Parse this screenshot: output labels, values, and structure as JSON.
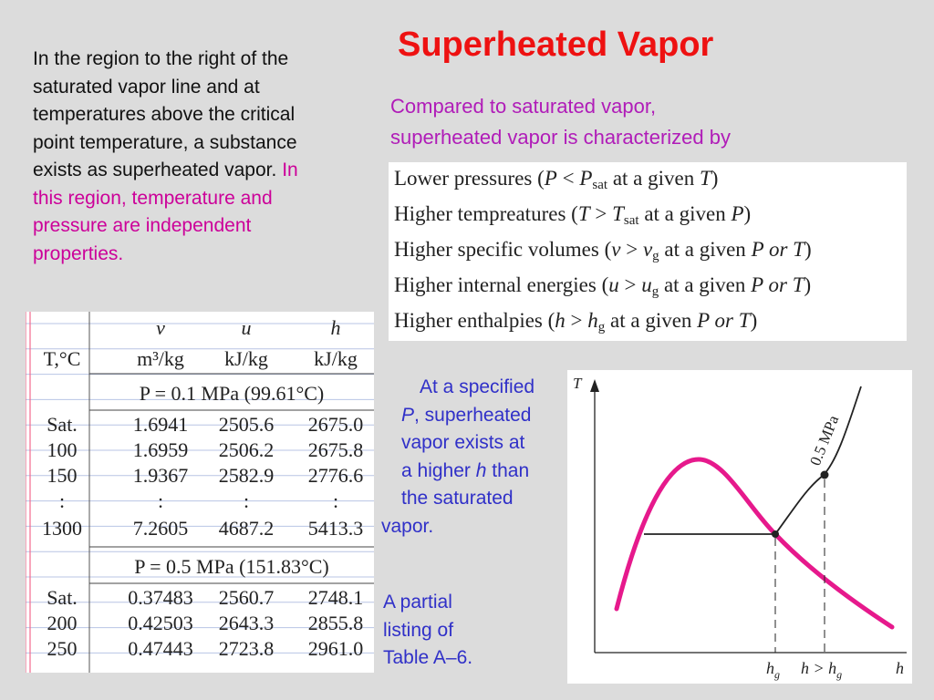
{
  "title": "Superheated Vapor",
  "intro": {
    "lines": [
      "In the region to the right of the",
      "saturated vapor line and at",
      "temperatures above the critical",
      "point temperature, a substance",
      "exists as superheated vapor."
    ],
    "highlight_lines": [
      "In",
      "this region, temperature and",
      "pressure are independent",
      "properties."
    ]
  },
  "compare": {
    "line1": "Compared to saturated vapor,",
    "line2": "superheated vapor is characterized by"
  },
  "properties": [
    {
      "prefix": "Lower pressures (",
      "lhs": "P",
      "op": " < ",
      "rhs": "P",
      "sub": "sat",
      "suffix": " at a given ",
      "given": "T",
      "tail": ")"
    },
    {
      "prefix": "Higher tempreatures (",
      "lhs": "T",
      "op": " > ",
      "rhs": "T",
      "sub": "sat",
      "suffix": " at a given ",
      "given": "P",
      "tail": ")"
    },
    {
      "prefix": "Higher specific volumes (",
      "lhs": "v",
      "op": " > ",
      "rhs": "v",
      "sub": "g",
      "suffix": " at a given ",
      "given": "P or T",
      "tail": ")"
    },
    {
      "prefix": "Higher internal energies (",
      "lhs": "u",
      "op": " > ",
      "rhs": "u",
      "sub": "g",
      "suffix": " at a given ",
      "given": "P or T",
      "tail": ")"
    },
    {
      "prefix": "Higher enthalpies (",
      "lhs": "h",
      "op": " > ",
      "rhs": "h",
      "sub": "g",
      "suffix": " at a given ",
      "given": "P or T",
      "tail": ")"
    }
  ],
  "table": {
    "header_symbols": [
      "v",
      "u",
      "h"
    ],
    "header_temp": "T,°C",
    "units": [
      "m³/kg",
      "kJ/kg",
      "kJ/kg"
    ],
    "sections": [
      {
        "caption": "P = 0.1 MPa (99.61°C)",
        "rows": [
          [
            "Sat.",
            "1.6941",
            "2505.6",
            "2675.0"
          ],
          [
            "100",
            "1.6959",
            "2506.2",
            "2675.8"
          ],
          [
            "150",
            "1.9367",
            "2582.9",
            "2776.6"
          ],
          [
            ":",
            ":",
            ":",
            ":"
          ],
          [
            "1300",
            "7.2605",
            "4687.2",
            "5413.3"
          ]
        ]
      },
      {
        "caption": "P = 0.5 MPa (151.83°C)",
        "rows": [
          [
            "Sat.",
            "0.37483",
            "2560.7",
            "2748.1"
          ],
          [
            "200",
            "0.42503",
            "2643.3",
            "2855.8"
          ],
          [
            "250",
            "0.47443",
            "2723.8",
            "2961.0"
          ]
        ]
      }
    ]
  },
  "note_specified": {
    "lines": [
      "At a specified",
      "P, superheated",
      "vapor exists at",
      "a higher h than",
      "the saturated",
      "vapor."
    ]
  },
  "note_partial": {
    "lines": [
      "A partial",
      "listing of",
      "Table A–6."
    ]
  },
  "diagram": {
    "y_axis": "T",
    "x_axis": "h",
    "isobar_label": "0.5 MPa",
    "tick_hg": "h",
    "tick_hg_sub": "g",
    "tick_hgt": "h > h",
    "tick_hgt_sub": "g"
  },
  "colors": {
    "title": "#ee1111",
    "highlight": "#cc0099",
    "compare": "#b01cb8",
    "note": "#3030c8",
    "dome": "#e6198c",
    "background": "#dcdcdc"
  }
}
